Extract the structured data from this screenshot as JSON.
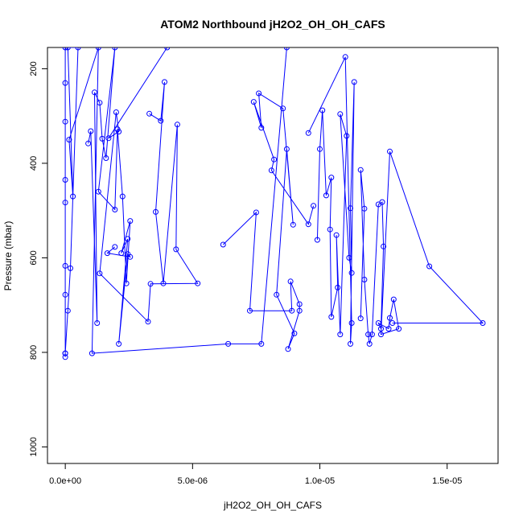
{
  "chart_data": {
    "type": "line",
    "title": "ATOM2 Northbound jH2O2_OH_OH_CAFS",
    "xlabel": "jH2O2_OH_OH_CAFS",
    "ylabel": "Pressure (mbar)",
    "xlim": [
      -7e-07,
      1.7e-05
    ],
    "ylim": [
      1035,
      155
    ],
    "y_reversed": true,
    "x_ticks": [
      0,
      5e-06,
      1e-05,
      1.5e-05
    ],
    "x_tick_labels": [
      "0.0e+00",
      "5.0e-06",
      "1.0e-05",
      "1.5e-05"
    ],
    "y_ticks": [
      200,
      400,
      600,
      800,
      1000
    ],
    "y_tick_labels": [
      "200",
      "400",
      "600",
      "800",
      "1000"
    ],
    "grid": false,
    "marker": "open-circle",
    "color": "#0000ff",
    "series": [
      {
        "points": [
          [
            0.0,
            230
          ],
          [
            0.0,
            312
          ],
          [
            0.0,
            435
          ],
          [
            0.0,
            483
          ],
          [
            0.0,
            617
          ],
          [
            0.0,
            678
          ],
          [
            0.0,
            802
          ],
          [
            0.0,
            810
          ],
          [
            0.0,
            155
          ],
          [
            0.0,
            802
          ],
          [
            1e-07,
            712
          ],
          [
            2e-07,
            622
          ],
          [
            5e-07,
            155
          ],
          [
            1e-07,
            155
          ],
          [
            3e-07,
            470
          ],
          [
            1.5e-07,
            350
          ],
          [
            1.3e-06,
            155
          ],
          [
            1.05e-06,
            802
          ],
          [
            6.4e-06,
            782
          ],
          [
            7.7e-06,
            782
          ],
          [
            8.7e-06,
            155
          ]
        ]
      },
      {
        "points": [
          [
            9e-07,
            358
          ],
          [
            1e-06,
            332
          ],
          [
            1.25e-06,
            738
          ],
          [
            1.15e-06,
            250
          ],
          [
            1.35e-06,
            272
          ],
          [
            1.45e-06,
            348
          ],
          [
            1.6e-06,
            389
          ],
          [
            1.95e-06,
            155
          ],
          [
            1.3e-06,
            460
          ],
          [
            1.95e-06,
            498
          ],
          [
            2.05e-06,
            328
          ],
          [
            2.25e-06,
            470
          ],
          [
            2.4e-06,
            654
          ],
          [
            2.55e-06,
            522
          ],
          [
            2.2e-06,
            590
          ],
          [
            2.45e-06,
            560
          ],
          [
            2.1e-06,
            782
          ],
          [
            2.45e-06,
            592
          ],
          [
            2.55e-06,
            598
          ],
          [
            1.65e-06,
            590
          ],
          [
            1.95e-06,
            577
          ]
        ]
      },
      {
        "points": [
          [
            3.3e-06,
            295
          ],
          [
            3.75e-06,
            310
          ],
          [
            3.9e-06,
            228
          ],
          [
            3.55e-06,
            503
          ],
          [
            3.85e-06,
            654
          ],
          [
            4.4e-06,
            318
          ],
          [
            4.35e-06,
            582
          ],
          [
            5.2e-06,
            654
          ],
          [
            3.35e-06,
            655
          ],
          [
            3.25e-06,
            735
          ],
          [
            1.35e-06,
            633
          ],
          [
            2e-06,
            292
          ],
          [
            2.1e-06,
            333
          ],
          [
            1.7e-06,
            347
          ],
          [
            4e-06,
            155
          ]
        ]
      },
      {
        "points": [
          [
            6.2e-06,
            572
          ],
          [
            7.5e-06,
            504
          ],
          [
            7.25e-06,
            712
          ],
          [
            8.9e-06,
            712
          ],
          [
            8.85e-06,
            650
          ],
          [
            9.2e-06,
            698
          ],
          [
            9.2e-06,
            712
          ],
          [
            8.75e-06,
            793
          ],
          [
            9e-06,
            760
          ],
          [
            8.3e-06,
            678
          ],
          [
            8.7e-06,
            370
          ],
          [
            8.95e-06,
            530
          ],
          [
            8.55e-06,
            284
          ],
          [
            7.6e-06,
            252
          ],
          [
            7.7e-06,
            325
          ],
          [
            7.4e-06,
            270
          ],
          [
            8.2e-06,
            392
          ],
          [
            8.1e-06,
            415
          ],
          [
            9.55e-06,
            529
          ],
          [
            9.75e-06,
            490
          ]
        ]
      },
      {
        "points": [
          [
            9.9e-06,
            562
          ],
          [
            1e-05,
            370
          ],
          [
            1.01e-05,
            288
          ],
          [
            1.025e-05,
            468
          ],
          [
            1.045e-05,
            430
          ],
          [
            1.04e-05,
            540
          ],
          [
            1.045e-05,
            725
          ],
          [
            1.07e-05,
            663
          ],
          [
            1.065e-05,
            552
          ],
          [
            1.08e-05,
            762
          ],
          [
            1.105e-05,
            342
          ],
          [
            1.08e-05,
            296
          ],
          [
            1.115e-05,
            600
          ],
          [
            1.125e-05,
            632
          ],
          [
            1.12e-05,
            495
          ],
          [
            1.135e-05,
            228
          ],
          [
            1.12e-05,
            782
          ],
          [
            1.125e-05,
            738
          ],
          [
            1.1e-05,
            175
          ],
          [
            9.55e-06,
            336
          ]
        ]
      },
      {
        "points": [
          [
            1.16e-05,
            728
          ],
          [
            1.175e-05,
            496
          ],
          [
            1.16e-05,
            414
          ],
          [
            1.175e-05,
            646
          ],
          [
            1.19e-05,
            762
          ],
          [
            1.195e-05,
            782
          ],
          [
            1.205e-05,
            762
          ],
          [
            1.23e-05,
            487
          ],
          [
            1.245e-05,
            482
          ],
          [
            1.25e-05,
            576
          ],
          [
            1.24e-05,
            750
          ],
          [
            1.23e-05,
            738
          ],
          [
            1.27e-05,
            750
          ],
          [
            1.275e-05,
            727
          ],
          [
            1.29e-05,
            688
          ],
          [
            1.31e-05,
            750
          ],
          [
            1.24e-05,
            762
          ],
          [
            1.275e-05,
            375
          ],
          [
            1.43e-05,
            618
          ],
          [
            1.64e-05,
            738
          ],
          [
            1.285e-05,
            738
          ]
        ]
      }
    ]
  }
}
